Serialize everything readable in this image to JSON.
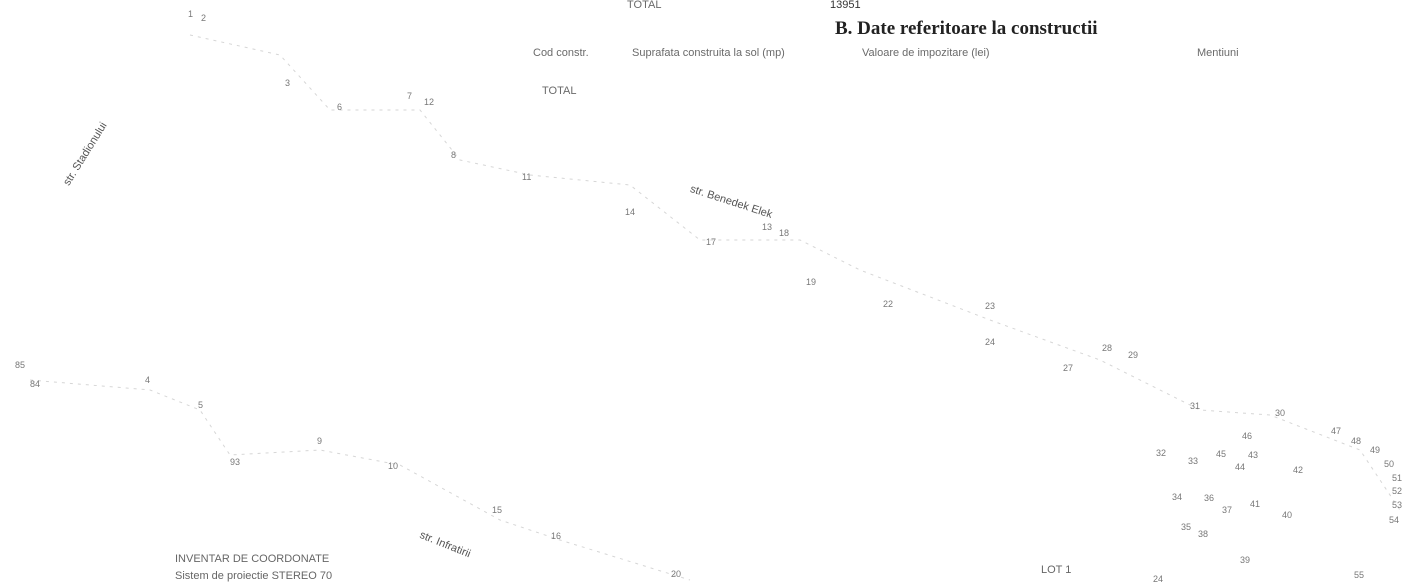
{
  "top": {
    "total_label": "TOTAL",
    "total_value": "13951",
    "section_title": "B. Date referitoare la constructii"
  },
  "table": {
    "headers": [
      "Cod constr.",
      "Suprafata construita la sol (mp)",
      "Valoare de impozitare (lei)",
      "Mentiuni"
    ],
    "total_label": "TOTAL"
  },
  "streets": {
    "stadionului": "str. Stadionului",
    "benedek": "str. Benedek Elek",
    "infratirii": "str. Infratirii"
  },
  "inventory": {
    "title": "INVENTAR DE COORDONATE",
    "subtitle": "Sistem de proiectie STEREO 70"
  },
  "lot": {
    "label": "LOT 1"
  },
  "points": [
    "1",
    "2",
    "3",
    "6",
    "7",
    "12",
    "8",
    "11",
    "14",
    "13",
    "18",
    "17",
    "19",
    "22",
    "23",
    "24",
    "28",
    "29",
    "27",
    "85",
    "84",
    "4",
    "5",
    "9",
    "93",
    "10",
    "15",
    "16",
    "20",
    "31",
    "30",
    "46",
    "47",
    "48",
    "49",
    "32",
    "33",
    "45",
    "43",
    "44",
    "42",
    "50",
    "51",
    "52",
    "53",
    "54",
    "34",
    "36",
    "37",
    "41",
    "40",
    "35",
    "38",
    "39",
    "55",
    "24"
  ]
}
